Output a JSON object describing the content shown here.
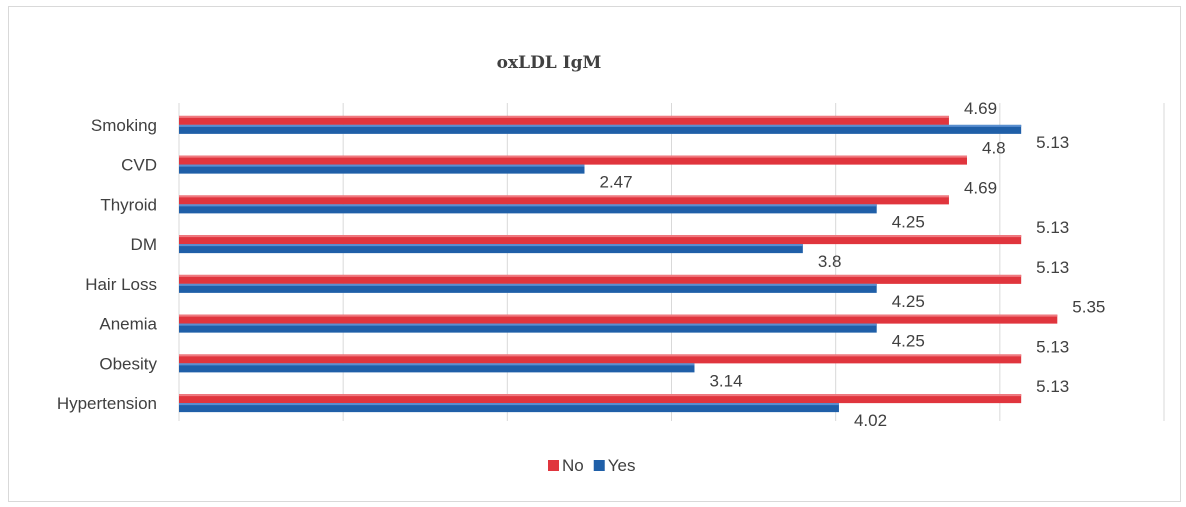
{
  "chart_data": {
    "type": "bar",
    "orientation": "horizontal",
    "title": "oxLDL IgM",
    "categories": [
      "Smoking",
      "CVD",
      "Thyroid",
      "DM",
      "Hair Loss",
      "Anemia",
      "Obesity",
      "Hypertension"
    ],
    "series": [
      {
        "name": "No",
        "color": "#e0353d",
        "values": [
          4.69,
          4.8,
          4.69,
          5.13,
          5.13,
          5.35,
          5.13,
          5.13
        ]
      },
      {
        "name": "Yes",
        "color": "#1f5fa8",
        "values": [
          5.13,
          2.47,
          4.25,
          3.8,
          4.25,
          4.25,
          3.14,
          4.02
        ]
      }
    ],
    "data_labels": {
      "No": [
        "4.69",
        "4.8",
        "4.69",
        "5.13",
        "5.13",
        "5.35",
        "5.13",
        "5.13"
      ],
      "Yes": [
        "5.13",
        "2.47",
        "4.25",
        "3.8",
        "4.25",
        "4.25",
        "3.14",
        "4.02"
      ]
    },
    "xlim": [
      0,
      6
    ],
    "grid": true,
    "legend_position": "bottom",
    "xlabel": "",
    "ylabel": ""
  }
}
